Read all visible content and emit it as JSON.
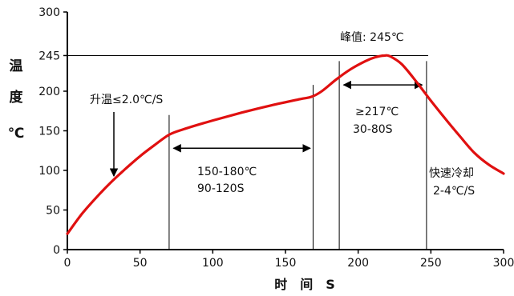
{
  "chart_data": {
    "type": "line",
    "title": "",
    "xlabel": "时 间 S",
    "ylabel_chars": [
      "温",
      "度",
      "℃"
    ],
    "xlim": [
      0,
      300
    ],
    "ylim": [
      0,
      300
    ],
    "x_ticks": [
      0,
      50,
      100,
      150,
      200,
      250,
      300
    ],
    "y_ticks": [
      0,
      50,
      100,
      150,
      200,
      245,
      300
    ],
    "grid": false,
    "line_color": "#e01010",
    "series": [
      {
        "x": [
          0,
          10,
          20,
          30,
          40,
          50,
          60,
          70,
          80,
          100,
          120,
          140,
          160,
          168,
          175,
          185,
          195,
          205,
          212,
          218,
          222,
          230,
          240,
          250,
          260,
          270,
          280,
          290,
          300
        ],
        "y": [
          20,
          45,
          66,
          85,
          102,
          118,
          132,
          145,
          152,
          163,
          173,
          182,
          190,
          193,
          200,
          215,
          228,
          238,
          243,
          245,
          244,
          234,
          212,
          188,
          165,
          143,
          122,
          107,
          96
        ]
      }
    ],
    "peak_line_y": 245,
    "vlines": [
      {
        "x": 70,
        "y_top": 170
      },
      {
        "x": 169,
        "y_top": 208
      },
      {
        "x": 187,
        "y_top": 238
      },
      {
        "x": 247,
        "y_top": 238
      }
    ],
    "arrows": [
      {
        "x1": 73,
        "x2": 167,
        "y": 128
      },
      {
        "x1": 190,
        "x2": 244,
        "y": 208
      }
    ],
    "annotations": {
      "ramp": "升温≤2.0℃/S",
      "peak": "峰值: 245℃",
      "soak_temp": "150-180℃",
      "soak_time": "90-120S",
      "reflow_temp": "≥217℃",
      "reflow_time": "30-80S",
      "cool_title": "快速冷却",
      "cool_rate": "2-4℃/S"
    }
  }
}
